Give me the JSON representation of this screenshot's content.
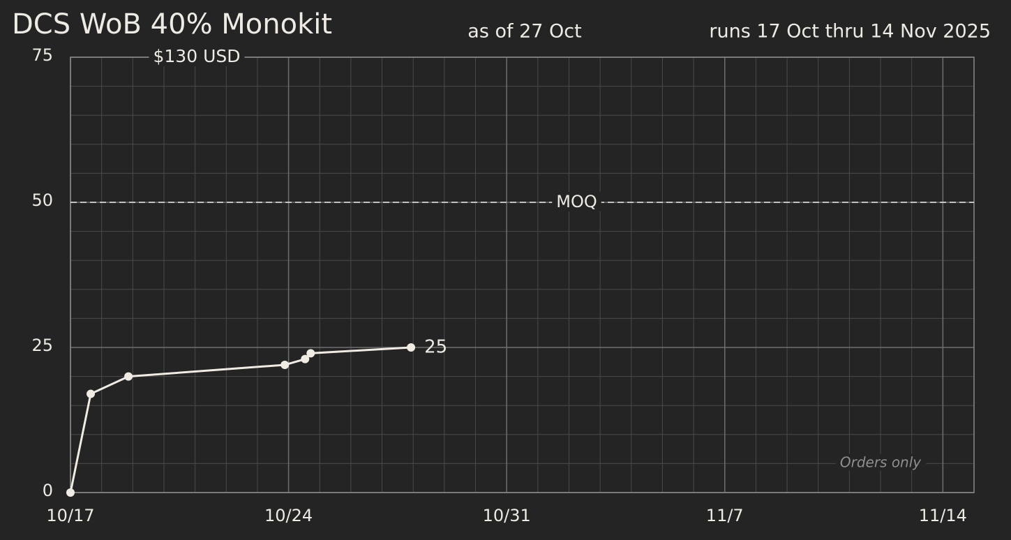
{
  "chart_data": {
    "type": "line",
    "title": "DCS WoB 40% Monokit",
    "subtitle": "as of 27 Oct",
    "run_note": "runs 17 Oct thru 14 Nov 2025",
    "price": "$130 USD",
    "footnote": "Orders only",
    "x": [
      0,
      0.65,
      1.86,
      6.88,
      7.53,
      7.71,
      10.93
    ],
    "values": [
      0,
      17,
      20,
      22,
      23,
      24,
      25
    ],
    "color": "#f0ebe3",
    "xlim": [
      0,
      29
    ],
    "ylim": [
      0,
      75
    ],
    "xticks": [
      {
        "value": 0,
        "label": "10/17"
      },
      {
        "value": 7,
        "label": "10/24"
      },
      {
        "value": 14,
        "label": "10/31"
      },
      {
        "value": 21,
        "label": "11/7"
      },
      {
        "value": 28,
        "label": "11/14"
      }
    ],
    "yticks": [
      0,
      25,
      50,
      75
    ],
    "minor_grid": {
      "x": 1,
      "y": 5
    },
    "grid": true,
    "reference_lines": [
      {
        "value": 50,
        "label": "MOQ"
      }
    ]
  }
}
